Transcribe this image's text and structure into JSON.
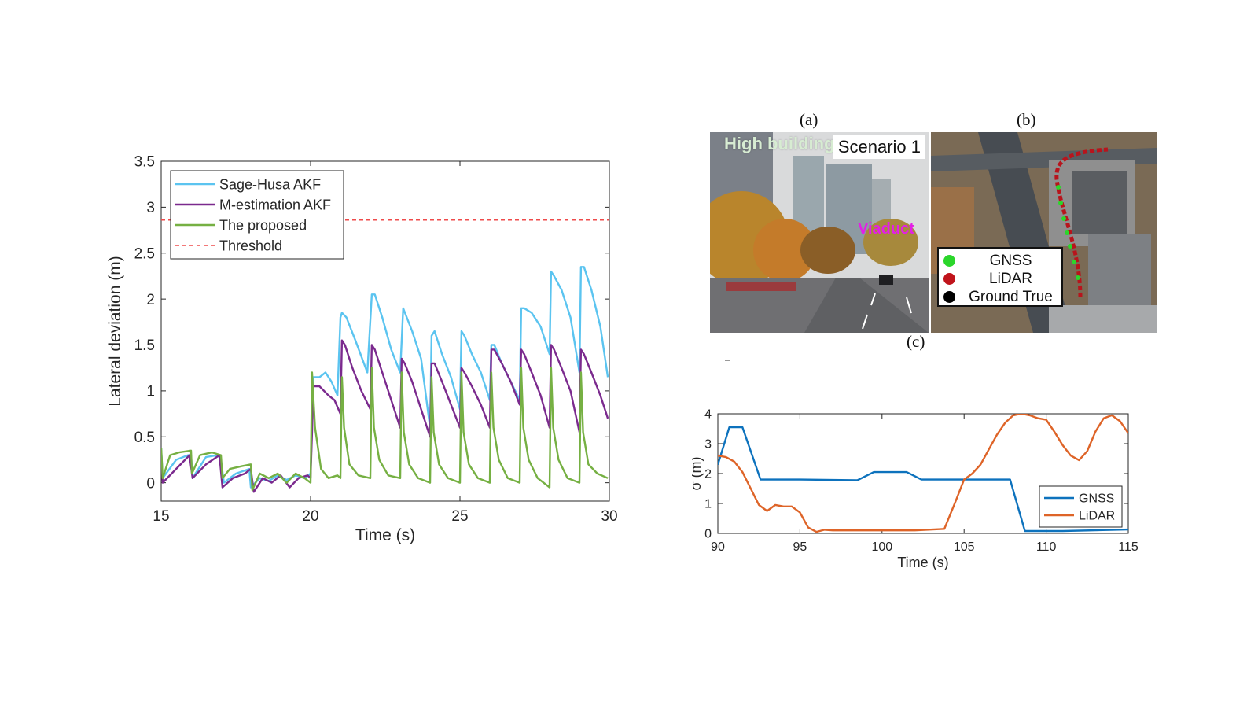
{
  "chart_data": [
    {
      "type": "line",
      "xlabel": "Time (s)",
      "ylabel": "Lateral deviation (m)",
      "xlim": [
        15,
        30
      ],
      "ylim": [
        -0.2,
        3.5
      ],
      "xticks": [
        15,
        20,
        25,
        30
      ],
      "yticks": [
        0,
        0.5,
        1,
        1.5,
        2,
        2.5,
        3,
        3.5
      ],
      "ytick_labels": [
        "0",
        "0.5",
        "1",
        "1.5",
        "2",
        "2.5",
        "3",
        "3.5"
      ],
      "legend_position": "top-left",
      "grid": false,
      "threshold": 2.86,
      "series": [
        {
          "name": "Sage-Husa AKF",
          "color": "#5bc4f0",
          "x": [
            15.0,
            15.05,
            15.5,
            15.9,
            16.0,
            16.05,
            16.5,
            16.9,
            17.0,
            17.1,
            17.5,
            17.95,
            18.0,
            18.3,
            18.6,
            18.9,
            19.2,
            19.5,
            19.8,
            20.0,
            20.1,
            20.3,
            20.5,
            20.7,
            20.9,
            21.0,
            21.05,
            21.2,
            21.5,
            21.9,
            22.05,
            22.15,
            22.4,
            22.7,
            23.0,
            23.1,
            23.4,
            23.7,
            24.0,
            24.05,
            24.15,
            24.4,
            24.7,
            25.0,
            25.05,
            25.15,
            25.4,
            25.7,
            26.0,
            26.05,
            26.15,
            26.4,
            26.7,
            27.0,
            27.05,
            27.15,
            27.4,
            27.7,
            28.0,
            28.05,
            28.15,
            28.4,
            28.7,
            29.0,
            29.05,
            29.15,
            29.4,
            29.7,
            29.95
          ],
          "y": [
            0.38,
            0.05,
            0.25,
            0.3,
            0.3,
            0.05,
            0.28,
            0.3,
            0.25,
            0.0,
            0.1,
            0.15,
            -0.05,
            0.05,
            0.02,
            0.08,
            0.03,
            0.08,
            0.05,
            0.1,
            1.15,
            1.15,
            1.2,
            1.1,
            0.95,
            1.8,
            1.85,
            1.8,
            1.55,
            1.2,
            2.05,
            2.05,
            1.8,
            1.45,
            1.2,
            1.9,
            1.65,
            1.35,
            0.6,
            1.6,
            1.65,
            1.4,
            1.15,
            0.8,
            1.65,
            1.6,
            1.4,
            1.2,
            0.9,
            1.5,
            1.5,
            1.3,
            1.1,
            0.9,
            1.9,
            1.9,
            1.85,
            1.7,
            1.4,
            2.3,
            2.25,
            2.1,
            1.8,
            1.2,
            2.35,
            2.35,
            2.1,
            1.7,
            1.15
          ]
        },
        {
          "name": "M-estimation AKF",
          "color": "#7b2a8e",
          "x": [
            15.0,
            15.05,
            15.5,
            15.95,
            16.05,
            16.5,
            16.95,
            17.05,
            17.4,
            17.8,
            18.0,
            18.1,
            18.4,
            18.7,
            19.0,
            19.3,
            19.6,
            19.9,
            20.0,
            20.1,
            20.3,
            20.6,
            20.8,
            21.0,
            21.05,
            21.15,
            21.4,
            21.7,
            22.0,
            22.05,
            22.15,
            22.4,
            22.7,
            23.0,
            23.05,
            23.15,
            23.4,
            23.7,
            24.0,
            24.05,
            24.15,
            24.4,
            24.7,
            25.0,
            25.05,
            25.15,
            25.4,
            25.7,
            26.0,
            26.05,
            26.15,
            26.4,
            26.7,
            27.0,
            27.05,
            27.15,
            27.4,
            27.7,
            28.0,
            28.05,
            28.15,
            28.4,
            28.7,
            29.0,
            29.05,
            29.15,
            29.4,
            29.7,
            29.95
          ],
          "y": [
            0.35,
            0.0,
            0.15,
            0.3,
            0.05,
            0.2,
            0.3,
            -0.05,
            0.05,
            0.1,
            0.15,
            -0.1,
            0.05,
            0.0,
            0.08,
            -0.05,
            0.05,
            0.08,
            0.05,
            1.05,
            1.05,
            0.95,
            0.9,
            0.75,
            1.55,
            1.5,
            1.25,
            1.0,
            0.8,
            1.5,
            1.45,
            1.2,
            0.9,
            0.6,
            1.35,
            1.3,
            1.1,
            0.8,
            0.5,
            1.3,
            1.3,
            1.1,
            0.85,
            0.6,
            1.25,
            1.2,
            1.05,
            0.85,
            0.6,
            1.45,
            1.45,
            1.3,
            1.1,
            0.85,
            1.45,
            1.4,
            1.2,
            0.95,
            0.6,
            1.5,
            1.45,
            1.25,
            1.0,
            0.55,
            1.45,
            1.4,
            1.2,
            0.95,
            0.7
          ]
        },
        {
          "name": "The proposed",
          "color": "#76b043",
          "x": [
            15.0,
            15.05,
            15.3,
            15.6,
            16.0,
            16.03,
            16.3,
            16.7,
            17.0,
            17.05,
            17.3,
            17.7,
            18.0,
            18.05,
            18.3,
            18.6,
            18.9,
            19.2,
            19.5,
            19.8,
            20.0,
            20.05,
            20.15,
            20.35,
            20.6,
            20.9,
            21.0,
            21.05,
            21.12,
            21.3,
            21.6,
            22.0,
            22.05,
            22.12,
            22.3,
            22.6,
            23.0,
            23.05,
            23.12,
            23.3,
            23.6,
            24.0,
            24.05,
            24.12,
            24.3,
            24.6,
            25.0,
            25.05,
            25.12,
            25.3,
            25.6,
            26.0,
            26.05,
            26.12,
            26.3,
            26.6,
            27.0,
            27.05,
            27.12,
            27.3,
            27.6,
            28.0,
            28.05,
            28.12,
            28.3,
            28.6,
            29.0,
            29.05,
            29.12,
            29.3,
            29.6,
            29.95
          ],
          "y": [
            0.38,
            0.05,
            0.3,
            0.33,
            0.35,
            0.1,
            0.3,
            0.33,
            0.3,
            0.05,
            0.15,
            0.18,
            0.2,
            -0.08,
            0.1,
            0.05,
            0.1,
            0.0,
            0.1,
            0.05,
            0.0,
            1.2,
            0.6,
            0.15,
            0.05,
            0.08,
            0.05,
            1.15,
            0.6,
            0.2,
            0.08,
            0.05,
            1.25,
            0.6,
            0.25,
            0.08,
            0.05,
            1.2,
            0.55,
            0.2,
            0.05,
            0.0,
            1.15,
            0.55,
            0.2,
            0.05,
            0.0,
            1.2,
            0.55,
            0.2,
            0.05,
            0.0,
            1.2,
            0.6,
            0.25,
            0.05,
            0.0,
            1.25,
            0.6,
            0.25,
            0.05,
            -0.05,
            1.25,
            0.6,
            0.25,
            0.05,
            0.0,
            1.2,
            0.55,
            0.2,
            0.1,
            0.05
          ]
        }
      ],
      "threshold_label": "Threshold",
      "threshold_color": "#ef4b4b"
    },
    {
      "type": "line",
      "xlabel": "Time (s)",
      "ylabel": "σ (m)",
      "xlim": [
        90,
        115
      ],
      "ylim": [
        0,
        4
      ],
      "xticks": [
        90,
        95,
        100,
        105,
        110,
        115
      ],
      "yticks": [
        0,
        1,
        2,
        3,
        4
      ],
      "legend_position": "bottom-right",
      "grid": false,
      "series": [
        {
          "name": "GNSS",
          "color": "#0d72bd",
          "x": [
            90.0,
            90.7,
            91.5,
            92.6,
            95.0,
            98.5,
            99.5,
            101.5,
            102.4,
            104.0,
            107.8,
            108.7,
            111.0,
            115.0
          ],
          "y": [
            2.3,
            3.55,
            3.55,
            1.8,
            1.8,
            1.78,
            2.05,
            2.05,
            1.8,
            1.8,
            1.8,
            0.08,
            0.08,
            0.13
          ]
        },
        {
          "name": "LiDAR",
          "color": "#de6428",
          "x": [
            90.0,
            90.5,
            91.0,
            91.5,
            92.0,
            92.5,
            93.0,
            93.5,
            94.0,
            94.5,
            95.0,
            95.5,
            96.0,
            96.5,
            97.0,
            98.0,
            100.0,
            102.0,
            103.8,
            104.5,
            105.0,
            105.5,
            106.0,
            106.5,
            107.0,
            107.5,
            108.0,
            108.5,
            109.0,
            109.5,
            110.0,
            110.5,
            111.0,
            111.5,
            112.0,
            112.5,
            113.0,
            113.5,
            114.0,
            114.5,
            115.0
          ],
          "y": [
            2.6,
            2.55,
            2.4,
            2.05,
            1.5,
            0.95,
            0.75,
            0.95,
            0.9,
            0.9,
            0.7,
            0.2,
            0.05,
            0.12,
            0.1,
            0.1,
            0.1,
            0.1,
            0.15,
            1.1,
            1.8,
            2.0,
            2.3,
            2.8,
            3.3,
            3.7,
            3.95,
            4.0,
            3.95,
            3.85,
            3.8,
            3.4,
            2.95,
            2.6,
            2.45,
            2.75,
            3.4,
            3.85,
            3.95,
            3.75,
            3.35
          ]
        }
      ]
    }
  ],
  "panels": {
    "a_label": "(a)",
    "b_label": "(b)",
    "c_label": "(c)",
    "scenario": "Scenario 1",
    "high_building": "High building",
    "viaduct": "Viaduct",
    "legend": [
      {
        "label": "GNSS",
        "color": "#2bd62b"
      },
      {
        "label": "LiDAR",
        "color": "#c0141b"
      },
      {
        "label": "Ground True",
        "color": "#000000"
      }
    ]
  }
}
